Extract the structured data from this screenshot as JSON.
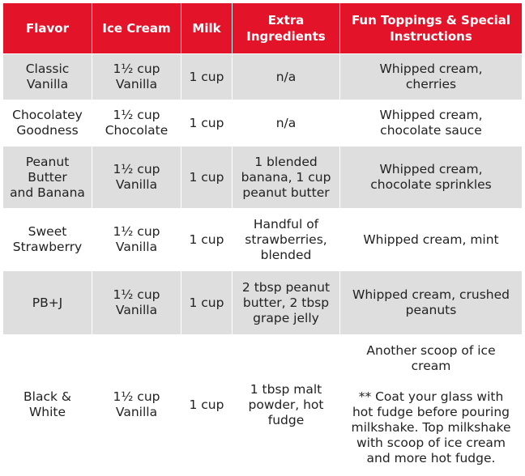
{
  "headers": {
    "flavor": "Flavor",
    "ice_cream": "Ice Cream",
    "milk": "Milk",
    "extra": "Extra Ingredients",
    "toppings": "Fun Toppings & Special Instructions"
  },
  "rows": [
    {
      "flavor": "Classic\nVanilla",
      "ice_cream": "1½ cup\nVanilla",
      "milk": "1 cup",
      "extra": "n/a",
      "toppings": "Whipped cream,\ncherries"
    },
    {
      "flavor": "Chocolatey\nGoodness",
      "ice_cream": "1½ cup\nChocolate",
      "milk": "1 cup",
      "extra": "n/a",
      "toppings": "Whipped cream,\nchocolate sauce"
    },
    {
      "flavor": "Peanut\nButter\nand Banana",
      "ice_cream": "1½ cup\nVanilla",
      "milk": "1 cup",
      "extra": "1 blended\nbanana, 1 cup\npeanut butter",
      "toppings": "Whipped cream,\nchocolate sprinkles"
    },
    {
      "flavor": "Sweet\nStrawberry",
      "ice_cream": "1½ cup\nVanilla",
      "milk": "1 cup",
      "extra": "Handful of\nstrawberries,\nblended",
      "toppings": "Whipped cream, mint"
    },
    {
      "flavor": "PB+J",
      "ice_cream": "1½ cup\nVanilla",
      "milk": "1 cup",
      "extra": "2 tbsp peanut\nbutter, 2 tbsp\ngrape jelly",
      "toppings": "Whipped cream, crushed\npeanuts"
    },
    {
      "flavor": "Black &\nWhite",
      "ice_cream": "1½ cup\nVanilla",
      "milk": "1 cup",
      "extra": "1 tbsp malt\npowder, hot\nfudge",
      "toppings": "Another scoop of ice\ncream",
      "toppings_note": "** Coat your glass with\nhot fudge before pouring\nmilkshake.  Top milkshake\nwith scoop of ice cream\nand more hot fudge."
    }
  ]
}
